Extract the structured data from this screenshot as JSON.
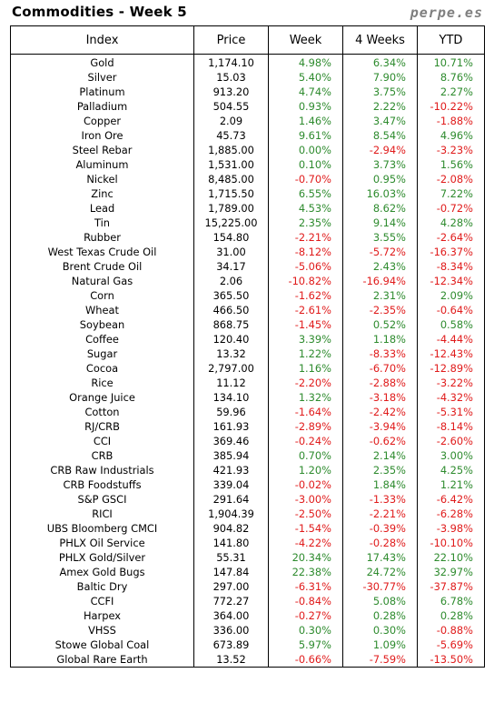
{
  "header": {
    "title": "Commodities - Week 5",
    "brand": "perpe.es"
  },
  "columns": [
    "Index",
    "Price",
    "Week",
    "4 Weeks",
    "YTD"
  ],
  "colors": {
    "positive": "#2e8b2e",
    "negative": "#e01b1b"
  },
  "rows": [
    {
      "name": "Gold",
      "price": "1,174.10",
      "week": "4.98%",
      "four_weeks": "6.34%",
      "ytd": "10.71%"
    },
    {
      "name": "Silver",
      "price": "15.03",
      "week": "5.40%",
      "four_weeks": "7.90%",
      "ytd": "8.76%"
    },
    {
      "name": "Platinum",
      "price": "913.20",
      "week": "4.74%",
      "four_weeks": "3.75%",
      "ytd": "2.27%"
    },
    {
      "name": "Palladium",
      "price": "504.55",
      "week": "0.93%",
      "four_weeks": "2.22%",
      "ytd": "-10.22%"
    },
    {
      "name": "Copper",
      "price": "2.09",
      "week": "1.46%",
      "four_weeks": "3.47%",
      "ytd": "-1.88%"
    },
    {
      "name": "Iron Ore",
      "price": "45.73",
      "week": "9.61%",
      "four_weeks": "8.54%",
      "ytd": "4.96%"
    },
    {
      "name": "Steel Rebar",
      "price": "1,885.00",
      "week": "0.00%",
      "four_weeks": "-2.94%",
      "ytd": "-3.23%"
    },
    {
      "name": "Aluminum",
      "price": "1,531.00",
      "week": "0.10%",
      "four_weeks": "3.73%",
      "ytd": "1.56%"
    },
    {
      "name": "Nickel",
      "price": "8,485.00",
      "week": "-0.70%",
      "four_weeks": "0.95%",
      "ytd": "-2.08%"
    },
    {
      "name": "Zinc",
      "price": "1,715.50",
      "week": "6.55%",
      "four_weeks": "16.03%",
      "ytd": "7.22%"
    },
    {
      "name": "Lead",
      "price": "1,789.00",
      "week": "4.53%",
      "four_weeks": "8.62%",
      "ytd": "-0.72%"
    },
    {
      "name": "Tin",
      "price": "15,225.00",
      "week": "2.35%",
      "four_weeks": "9.14%",
      "ytd": "4.28%"
    },
    {
      "name": "Rubber",
      "price": "154.80",
      "week": "-2.21%",
      "four_weeks": "3.55%",
      "ytd": "-2.64%"
    },
    {
      "name": "West Texas Crude Oil",
      "price": "31.00",
      "week": "-8.12%",
      "four_weeks": "-5.72%",
      "ytd": "-16.37%"
    },
    {
      "name": "Brent Crude Oil",
      "price": "34.17",
      "week": "-5.06%",
      "four_weeks": "2.43%",
      "ytd": "-8.34%"
    },
    {
      "name": "Natural Gas",
      "price": "2.06",
      "week": "-10.82%",
      "four_weeks": "-16.94%",
      "ytd": "-12.34%"
    },
    {
      "name": "Corn",
      "price": "365.50",
      "week": "-1.62%",
      "four_weeks": "2.31%",
      "ytd": "2.09%"
    },
    {
      "name": "Wheat",
      "price": "466.50",
      "week": "-2.61%",
      "four_weeks": "-2.35%",
      "ytd": "-0.64%"
    },
    {
      "name": "Soybean",
      "price": "868.75",
      "week": "-1.45%",
      "four_weeks": "0.52%",
      "ytd": "0.58%"
    },
    {
      "name": "Coffee",
      "price": "120.40",
      "week": "3.39%",
      "four_weeks": "1.18%",
      "ytd": "-4.44%"
    },
    {
      "name": "Sugar",
      "price": "13.32",
      "week": "1.22%",
      "four_weeks": "-8.33%",
      "ytd": "-12.43%"
    },
    {
      "name": "Cocoa",
      "price": "2,797.00",
      "week": "1.16%",
      "four_weeks": "-6.70%",
      "ytd": "-12.89%"
    },
    {
      "name": "Rice",
      "price": "11.12",
      "week": "-2.20%",
      "four_weeks": "-2.88%",
      "ytd": "-3.22%"
    },
    {
      "name": "Orange Juice",
      "price": "134.10",
      "week": "1.32%",
      "four_weeks": "-3.18%",
      "ytd": "-4.32%"
    },
    {
      "name": "Cotton",
      "price": "59.96",
      "week": "-1.64%",
      "four_weeks": "-2.42%",
      "ytd": "-5.31%"
    },
    {
      "name": "RJ/CRB",
      "price": "161.93",
      "week": "-2.89%",
      "four_weeks": "-3.94%",
      "ytd": "-8.14%"
    },
    {
      "name": "CCI",
      "price": "369.46",
      "week": "-0.24%",
      "four_weeks": "-0.62%",
      "ytd": "-2.60%"
    },
    {
      "name": "CRB",
      "price": "385.94",
      "week": "0.70%",
      "four_weeks": "2.14%",
      "ytd": "3.00%"
    },
    {
      "name": "CRB Raw Industrials",
      "price": "421.93",
      "week": "1.20%",
      "four_weeks": "2.35%",
      "ytd": "4.25%"
    },
    {
      "name": "CRB Foodstuffs",
      "price": "339.04",
      "week": "-0.02%",
      "four_weeks": "1.84%",
      "ytd": "1.21%"
    },
    {
      "name": "S&P GSCI",
      "price": "291.64",
      "week": "-3.00%",
      "four_weeks": "-1.33%",
      "ytd": "-6.42%"
    },
    {
      "name": "RICI",
      "price": "1,904.39",
      "week": "-2.50%",
      "four_weeks": "-2.21%",
      "ytd": "-6.28%"
    },
    {
      "name": "UBS Bloomberg CMCI",
      "price": "904.82",
      "week": "-1.54%",
      "four_weeks": "-0.39%",
      "ytd": "-3.98%"
    },
    {
      "name": "PHLX Oil Service",
      "price": "141.80",
      "week": "-4.22%",
      "four_weeks": "-0.28%",
      "ytd": "-10.10%"
    },
    {
      "name": "PHLX Gold/Silver",
      "price": "55.31",
      "week": "20.34%",
      "four_weeks": "17.43%",
      "ytd": "22.10%"
    },
    {
      "name": "Amex Gold Bugs",
      "price": "147.84",
      "week": "22.38%",
      "four_weeks": "24.72%",
      "ytd": "32.97%"
    },
    {
      "name": "Baltic Dry",
      "price": "297.00",
      "week": "-6.31%",
      "four_weeks": "-30.77%",
      "ytd": "-37.87%"
    },
    {
      "name": "CCFI",
      "price": "772.27",
      "week": "-0.84%",
      "four_weeks": "5.08%",
      "ytd": "6.78%"
    },
    {
      "name": "Harpex",
      "price": "364.00",
      "week": "-0.27%",
      "four_weeks": "0.28%",
      "ytd": "0.28%"
    },
    {
      "name": "VHSS",
      "price": "336.00",
      "week": "0.30%",
      "four_weeks": "0.30%",
      "ytd": "-0.88%"
    },
    {
      "name": "Stowe Global Coal",
      "price": "673.89",
      "week": "5.97%",
      "four_weeks": "1.09%",
      "ytd": "-5.69%"
    },
    {
      "name": "Global Rare Earth",
      "price": "13.52",
      "week": "-0.66%",
      "four_weeks": "-7.59%",
      "ytd": "-13.50%"
    }
  ]
}
